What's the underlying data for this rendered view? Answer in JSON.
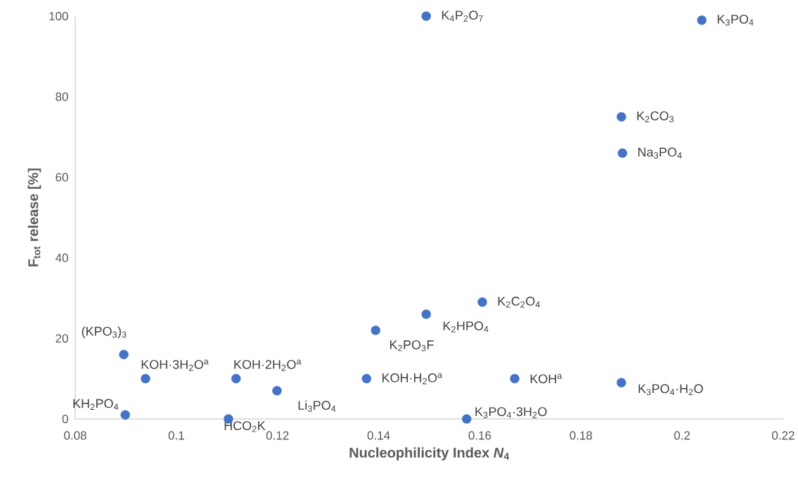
{
  "chart_data": {
    "type": "scatter",
    "xlabel": "Nucleophilicity Index *N*$_{4}$",
    "ylabel": "F$_{tot}$ release [%]",
    "x": [
      0.1494,
      0.2039,
      0.188,
      0.1882,
      0.1605,
      0.1494,
      0.1394,
      0.0896,
      0.0939,
      0.1118,
      0.1199,
      0.1376,
      0.1669,
      0.188,
      0.0899,
      0.1103,
      0.1574
    ],
    "values": [
      100,
      99,
      75,
      66,
      29,
      26,
      22,
      16,
      10,
      10,
      7,
      10,
      10,
      9,
      1,
      0,
      0
    ],
    "color": "#4472c4",
    "xlim": [
      0.08,
      0.22
    ],
    "xticks": [
      0.08,
      0.1,
      0.12,
      0.14,
      0.16,
      0.18,
      0.2,
      0.22
    ],
    "ylim": [
      0,
      100
    ],
    "yticks": [
      0,
      20,
      40,
      60,
      80,
      100
    ],
    "grid": false,
    "annotations": [
      {
        "text": "K$_{4}$P$_{2}$O$_{7}$",
        "x": 0.1494,
        "y": 100
      },
      {
        "text": "K$_{3}$PO$_{4}$",
        "x": 0.2039,
        "y": 99
      },
      {
        "text": "K$_{2}$CO$_{3}$",
        "x": 0.188,
        "y": 75
      },
      {
        "text": "Na$_{3}$PO$_{4}$",
        "x": 0.1882,
        "y": 66
      },
      {
        "text": "K$_{2}$C$_{2}$O$_{4}$",
        "x": 0.1605,
        "y": 29
      },
      {
        "text": "K$_{2}$HPO$_{4}$",
        "x": 0.1494,
        "y": 26
      },
      {
        "text": "K$_{2}$PO$_{3}$F",
        "x": 0.1394,
        "y": 22
      },
      {
        "text": "(KPO$_{3}$)$_{3}$",
        "x": 0.0896,
        "y": 16
      },
      {
        "text": "KOH·3H$_{2}$O$^{a}$",
        "x": 0.0939,
        "y": 10
      },
      {
        "text": "KOH·2H$_{2}$O$^{a}$",
        "x": 0.1118,
        "y": 10
      },
      {
        "text": "Li$_{3}$PO$_{4}$",
        "x": 0.1199,
        "y": 7
      },
      {
        "text": "KOH·H$_{2}$O$^{a}$",
        "x": 0.1376,
        "y": 10
      },
      {
        "text": "KOH$^{a}$",
        "x": 0.1669,
        "y": 10
      },
      {
        "text": "K$_{3}$PO$_{4}$·H$_{2}$O",
        "x": 0.188,
        "y": 9
      },
      {
        "text": "KH$_{2}$PO$_{4}$",
        "x": 0.0899,
        "y": 1
      },
      {
        "text": "HCO$_{2}$K",
        "x": 0.1103,
        "y": 0
      },
      {
        "text": "K$_{3}$PO$_{4}$·3H$_{2}$O",
        "x": 0.1574,
        "y": 0
      }
    ]
  }
}
